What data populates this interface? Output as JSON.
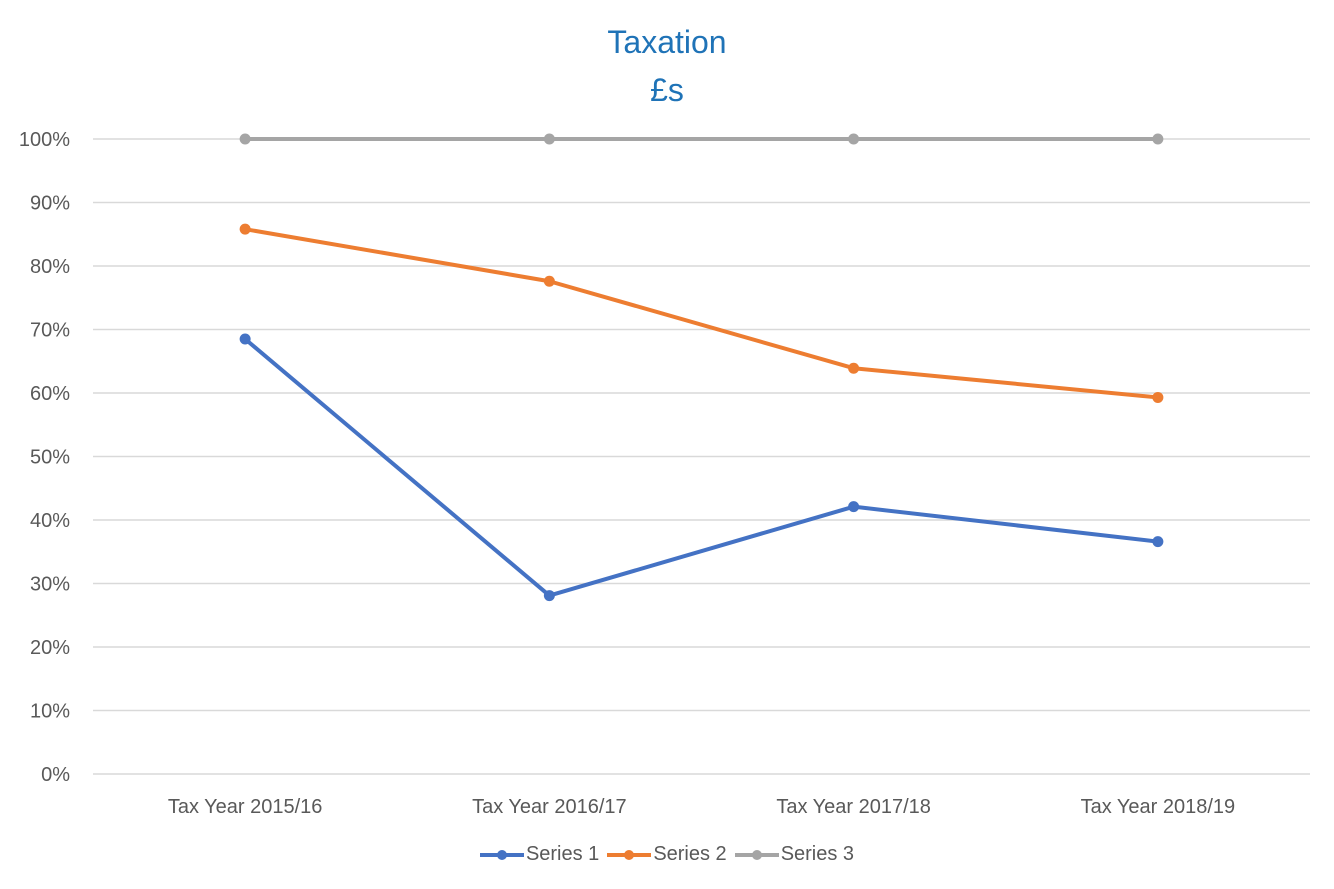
{
  "chart_data": {
    "type": "line",
    "title": "Taxation",
    "subtitle": "£s",
    "categories": [
      "Tax Year 2015/16",
      "Tax Year 2016/17",
      "Tax Year 2017/18",
      "Tax Year 2018/19"
    ],
    "series": [
      {
        "name": "Series 1",
        "values": [
          68.5,
          28.1,
          42.1,
          36.6
        ],
        "color": "#4472c4"
      },
      {
        "name": "Series 2",
        "values": [
          85.8,
          77.6,
          63.9,
          59.3
        ],
        "color": "#ed7d31"
      },
      {
        "name": "Series 3",
        "values": [
          100,
          100,
          100,
          100
        ],
        "color": "#a5a5a5"
      }
    ],
    "yticks": [
      "0%",
      "10%",
      "20%",
      "30%",
      "40%",
      "50%",
      "60%",
      "70%",
      "80%",
      "90%",
      "100%"
    ],
    "ylim": [
      0,
      100
    ],
    "grid": true,
    "legend": "bottom"
  }
}
